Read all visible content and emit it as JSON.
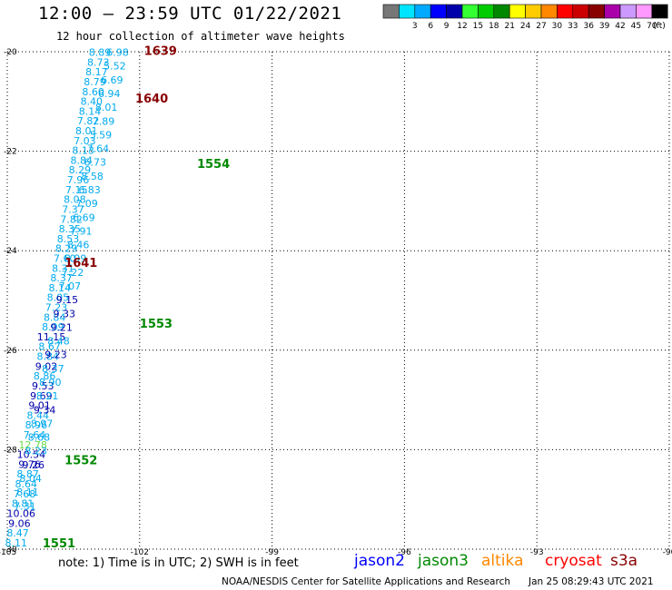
{
  "header": {
    "title": "12:00 — 23:59 UTC 01/22/2021",
    "subtitle": "12 hour collection of altimeter wave heights"
  },
  "legend": {
    "unit": "(ft)",
    "steps": [
      {
        "label": "",
        "color": "#777777"
      },
      {
        "label": "3",
        "color": "#00e5ff"
      },
      {
        "label": "6",
        "color": "#00aaff"
      },
      {
        "label": "9",
        "color": "#0000ff"
      },
      {
        "label": "12",
        "color": "#0000aa"
      },
      {
        "label": "15",
        "color": "#33ff33"
      },
      {
        "label": "18",
        "color": "#00cc00"
      },
      {
        "label": "21",
        "color": "#008800"
      },
      {
        "label": "24",
        "color": "#ffff00"
      },
      {
        "label": "27",
        "color": "#ffcc00"
      },
      {
        "label": "30",
        "color": "#ff8800"
      },
      {
        "label": "33",
        "color": "#ff0000"
      },
      {
        "label": "36",
        "color": "#cc0000"
      },
      {
        "label": "39",
        "color": "#880000"
      },
      {
        "label": "42",
        "color": "#aa00aa"
      },
      {
        "label": "45",
        "color": "#cc99ff"
      },
      {
        "label": "70",
        "color": "#ff99ff"
      },
      {
        "label": "",
        "color": "#000000"
      }
    ]
  },
  "footer": {
    "note": "note:  1) Time is in UTC;  2) SWH is in feet",
    "credit": "NOAA/NESDIS Center for Satellite Applications and Research",
    "timestamp": "Jan 25 08:29:43 UTC 2021",
    "satellites": [
      {
        "name": "jason2",
        "color": "#0000ff"
      },
      {
        "name": "jason3",
        "color": "#008800"
      },
      {
        "name": "altika",
        "color": "#ff8800"
      },
      {
        "name": "cryosat",
        "color": "#ff0000"
      },
      {
        "name": "s3a",
        "color": "#880000"
      }
    ]
  },
  "chart_data": {
    "type": "scatter",
    "title": "12:00 — 23:59 UTC 01/22/2021",
    "subtitle": "12 hour collection of altimeter wave heights",
    "xlim": [
      -105,
      -90
    ],
    "ylim": [
      -30,
      -20
    ],
    "x_ticks": [
      -105,
      -102,
      -99,
      -96,
      -93,
      -90
    ],
    "y_ticks": [
      -20,
      -22,
      -24,
      -26,
      -28,
      -30
    ],
    "x_tick_labels": [
      "-105",
      "-102",
      "-99",
      "-96",
      "-93",
      "-90"
    ],
    "y_tick_labels": [
      "-20",
      "-22",
      "-24",
      "-26",
      "-28",
      "-30"
    ],
    "grid": "dotted",
    "units": "ft",
    "swh_colors": {
      "lt9": "#00aaee",
      "9to12": "#0000aa",
      "gt12": "#66dd44"
    },
    "track_colors": {
      "jason3": "#008800",
      "s3a": "#880000"
    },
    "tracks": [
      {
        "label": "1551",
        "satellite": "jason3",
        "label_pos": {
          "x": -104.2,
          "y": -29.87
        },
        "start": {
          "x": -104.8,
          "y": -29.87
        },
        "end": {
          "x": -102.9,
          "y": -20.01
        },
        "values": [
          8.11,
          8.47,
          9.06,
          10.06,
          8.81,
          7.68,
          8.64,
          8.87,
          9.76,
          10.54,
          12.78,
          7.64,
          8.96,
          8.44,
          9.01,
          9.69,
          9.53,
          8.86,
          9.02,
          8.84,
          8.67,
          11.15,
          8.09,
          8.84,
          7.23,
          8.05,
          8.14,
          8.37,
          8.31,
          7.6,
          8.29,
          8.53,
          8.35,
          7.82,
          7.37,
          8.08,
          7.15,
          7.96,
          8.29,
          8.84,
          8.13,
          7.03,
          8.01,
          7.82,
          8.14,
          8.4,
          8.6,
          8.79,
          8.17,
          8.73,
          8.89
        ]
      },
      {
        "label": "1639",
        "satellite": "s3a",
        "label_pos": {
          "x": -101.9,
          "y": -19.97
        },
        "start": {
          "x": -102.5,
          "y": -20.01
        },
        "end": {
          "x": -104.6,
          "y": -29.13
        },
        "values": [
          6.98,
          5.52,
          6.69,
          6.94,
          8.01,
          7.89,
          5.59,
          7.64,
          6.73,
          8.58,
          6.83,
          7.09,
          6.69,
          7.91,
          8.46,
          8.99,
          7.22,
          7.07,
          9.15,
          9.33,
          9.21,
          8.48,
          9.23,
          8.37,
          8.9,
          8.21,
          9.34,
          8.97,
          8.68,
          8.23,
          9.26,
          8.04,
          8.11,
          7.31
        ]
      }
    ],
    "labels": [
      {
        "text": "1640",
        "satellite": "s3a",
        "x": -102.1,
        "y": -20.93
      },
      {
        "text": "1641",
        "satellite": "s3a",
        "x": -103.7,
        "y": -24.23
      },
      {
        "text": "1554",
        "satellite": "jason3",
        "x": -100.7,
        "y": -22.24
      },
      {
        "text": "1553",
        "satellite": "jason3",
        "x": -102.0,
        "y": -25.46
      },
      {
        "text": "1552",
        "satellite": "jason3",
        "x": -103.7,
        "y": -28.2
      }
    ]
  }
}
